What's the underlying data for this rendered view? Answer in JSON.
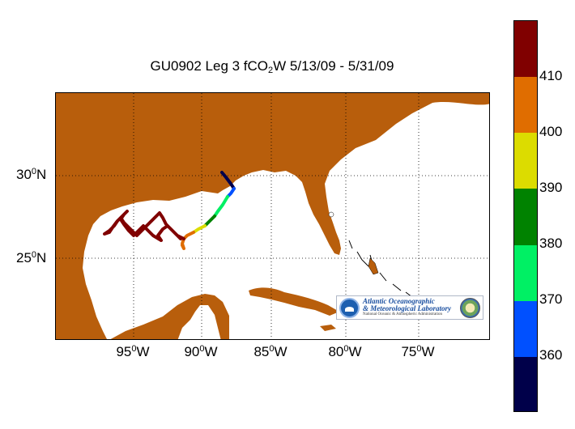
{
  "title": {
    "prefix": "GU0902 Leg 3 fCO",
    "sub": "2",
    "suffix": "W 5/13/09 - 5/31/09"
  },
  "map": {
    "longitude_ticks": [
      {
        "value": "95",
        "sup": "0",
        "dir": "W"
      },
      {
        "value": "90",
        "sup": "0",
        "dir": "W"
      },
      {
        "value": "85",
        "sup": "0",
        "dir": "W"
      },
      {
        "value": "80",
        "sup": "0",
        "dir": "W"
      },
      {
        "value": "75",
        "sup": "0",
        "dir": "W"
      }
    ],
    "latitude_ticks": [
      {
        "value": "30",
        "sup": "0",
        "dir": "N"
      },
      {
        "value": "25",
        "sup": "0",
        "dir": "N"
      }
    ],
    "land_color": "#b85e0c",
    "ocean_color": "#ffffff",
    "grid": "dotted"
  },
  "colorbar": {
    "tick_labels": [
      "410",
      "400",
      "390",
      "380",
      "370",
      "360"
    ],
    "segments": [
      {
        "from": 410,
        "to": 420,
        "color": "#800000"
      },
      {
        "from": 400,
        "to": 410,
        "color": "#e06d00"
      },
      {
        "from": 390,
        "to": 400,
        "color": "#dcdc00"
      },
      {
        "from": 380,
        "to": 390,
        "color": "#008200"
      },
      {
        "from": 370,
        "to": 380,
        "color": "#00f064"
      },
      {
        "from": 360,
        "to": 370,
        "color": "#0050ff"
      },
      {
        "from": 350,
        "to": 360,
        "color": "#00004a"
      }
    ],
    "range": [
      350,
      420
    ]
  },
  "logo": {
    "line1": "Atlantic Oceanographic",
    "line2": "& Meteorological Laboratory",
    "line3": "National Oceanic & Atmospheric Administration"
  }
}
